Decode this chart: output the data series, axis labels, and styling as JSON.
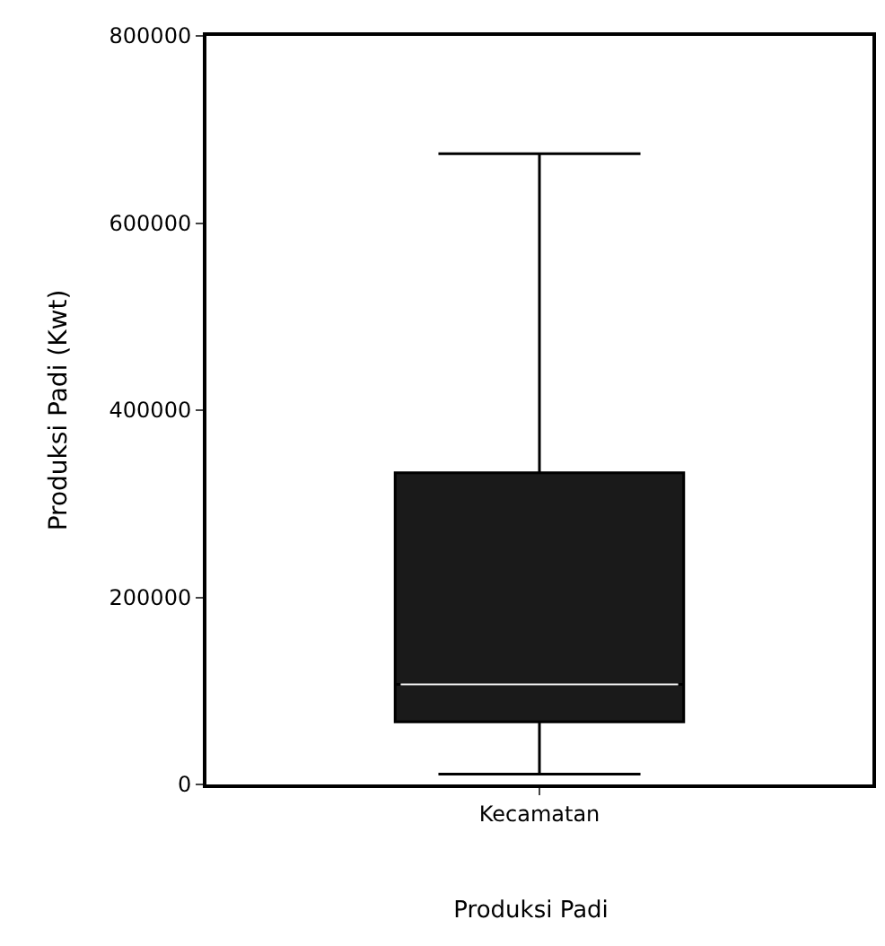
{
  "chart_data": {
    "type": "box",
    "title": "Produksi Padi",
    "ylabel": "Produksi Padi (Kwt)",
    "categories": [
      "Kecamatan"
    ],
    "boxes": [
      {
        "low": 11000,
        "q1": 67000,
        "median": 107000,
        "q3": 333000,
        "high": 674000
      }
    ],
    "color": "#1a1a1a",
    "ylim": [
      0,
      800000
    ],
    "yticks": [
      0,
      200000,
      400000,
      600000,
      800000
    ],
    "grid": false
  }
}
